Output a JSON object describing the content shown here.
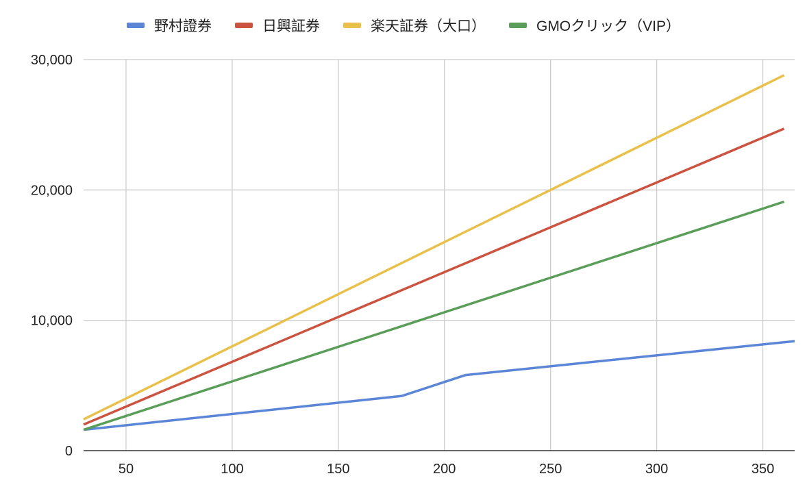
{
  "chart_data": {
    "type": "line",
    "title": "",
    "xlabel": "",
    "ylabel": "",
    "xlim": [
      30,
      365
    ],
    "ylim": [
      0,
      30000
    ],
    "x_ticks": [
      50,
      100,
      150,
      200,
      250,
      300,
      350
    ],
    "x_tick_labels": [
      "50",
      "100",
      "150",
      "200",
      "250",
      "300",
      "350"
    ],
    "y_ticks": [
      0,
      10000,
      20000,
      30000
    ],
    "y_tick_labels": [
      "0",
      "10,000",
      "20,000",
      "30,000"
    ],
    "grid": true,
    "legend_position": "top",
    "series": [
      {
        "name": "野村證券",
        "color": "#5b85d6",
        "x": [
          30,
          180,
          210,
          365
        ],
        "y": [
          1600,
          4200,
          5800,
          8400
        ]
      },
      {
        "name": "日興証券",
        "color": "#cc5340",
        "x": [
          30,
          360
        ],
        "y": [
          2000,
          24700
        ]
      },
      {
        "name": "楽天証券（大口）",
        "color": "#e9c04a",
        "x": [
          30,
          360
        ],
        "y": [
          2400,
          28800
        ]
      },
      {
        "name": "GMOクリック（VIP）",
        "color": "#5a9e5a",
        "x": [
          30,
          360
        ],
        "y": [
          1600,
          19100
        ]
      }
    ]
  }
}
